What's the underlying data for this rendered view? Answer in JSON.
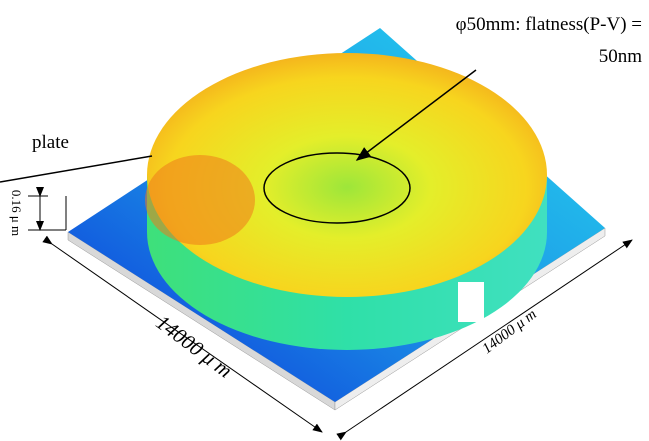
{
  "annotation": {
    "line1": "φ50mm: flatness(P-V) =",
    "line2": "50nm"
  },
  "plate_label": "plate",
  "height_label": "0.16 μ m",
  "width_labels": [
    "14000 μ m",
    "14000 μ m"
  ]
}
